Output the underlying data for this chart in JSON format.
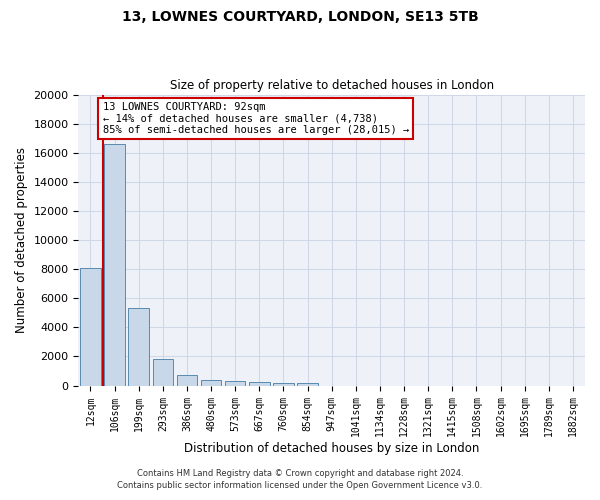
{
  "title": "13, LOWNES COURTYARD, LONDON, SE13 5TB",
  "subtitle": "Size of property relative to detached houses in London",
  "xlabel": "Distribution of detached houses by size in London",
  "ylabel": "Number of detached properties",
  "bar_color": "#c8d8e8",
  "bar_edge_color": "#5a8ab0",
  "categories": [
    "12sqm",
    "106sqm",
    "199sqm",
    "293sqm",
    "386sqm",
    "480sqm",
    "573sqm",
    "667sqm",
    "760sqm",
    "854sqm",
    "947sqm",
    "1041sqm",
    "1134sqm",
    "1228sqm",
    "1321sqm",
    "1415sqm",
    "1508sqm",
    "1602sqm",
    "1695sqm",
    "1789sqm",
    "1882sqm"
  ],
  "values": [
    8100,
    16600,
    5300,
    1850,
    700,
    380,
    290,
    230,
    190,
    160,
    0,
    0,
    0,
    0,
    0,
    0,
    0,
    0,
    0,
    0,
    0
  ],
  "ylim": [
    0,
    20000
  ],
  "yticks": [
    0,
    2000,
    4000,
    6000,
    8000,
    10000,
    12000,
    14000,
    16000,
    18000,
    20000
  ],
  "annotation_text": "13 LOWNES COURTYARD: 92sqm\n← 14% of detached houses are smaller (4,738)\n85% of semi-detached houses are larger (28,015) →",
  "annotation_box_color": "#ffffff",
  "annotation_box_edge_color": "#cc0000",
  "vline_color": "#cc0000",
  "grid_color": "#d0d8e8",
  "background_color": "#eef2f8",
  "footer_line1": "Contains HM Land Registry data © Crown copyright and database right 2024.",
  "footer_line2": "Contains public sector information licensed under the Open Government Licence v3.0."
}
